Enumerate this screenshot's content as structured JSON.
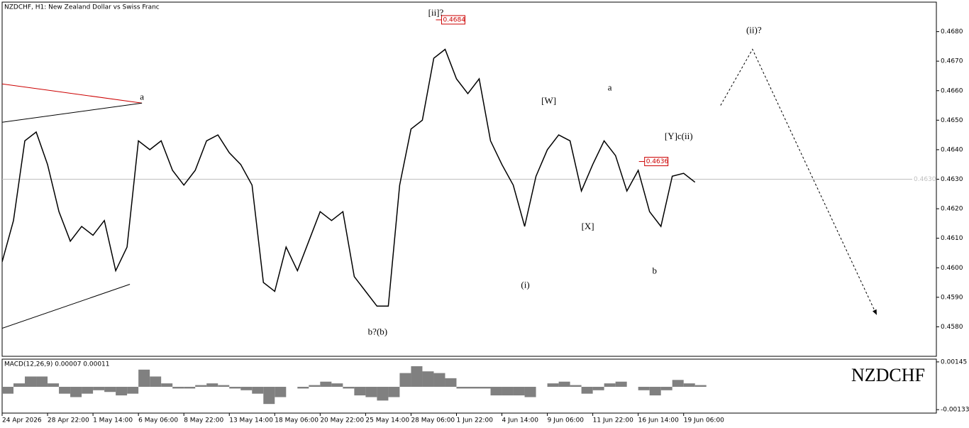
{
  "chart_data": [
    {
      "type": "line",
      "title": "NZDCHF, H1:  New Zealand Dollar vs Swiss Franc",
      "xlim": [
        0,
        329
      ],
      "ylim": [
        0.457,
        0.469
      ],
      "xticks": [
        {
          "value": 0,
          "label": "24 Apr 2026"
        },
        {
          "value": 16,
          "label": "28 Apr 22:00"
        },
        {
          "value": 32,
          "label": "1 May 14:00"
        },
        {
          "value": 48,
          "label": "6 May 06:00"
        },
        {
          "value": 64,
          "label": "8 May 22:00"
        },
        {
          "value": 80,
          "label": "13 May 14:00"
        },
        {
          "value": 96,
          "label": "18 May 06:00"
        },
        {
          "value": 112,
          "label": "20 May 22:00"
        },
        {
          "value": 128,
          "label": "25 May 14:00"
        },
        {
          "value": 144,
          "label": "28 May 06:00"
        },
        {
          "value": 160,
          "label": "1 Jun 22:00"
        },
        {
          "value": 176,
          "label": "4 Jun 14:00"
        },
        {
          "value": 192,
          "label": "9 Jun 06:00"
        },
        {
          "value": 208,
          "label": "11 Jun 22:00"
        },
        {
          "value": 224,
          "label": "16 Jun 14:00"
        },
        {
          "value": 240,
          "label": "19 Jun 06:00"
        }
      ],
      "yticks": [
        {
          "value": 0.458,
          "label": "0.4580"
        },
        {
          "value": 0.459,
          "label": "0.4590"
        },
        {
          "value": 0.46,
          "label": "0.4600"
        },
        {
          "value": 0.461,
          "label": "0.4610"
        },
        {
          "value": 0.462,
          "label": "0.4620"
        },
        {
          "value": 0.463,
          "label": "0.4630"
        },
        {
          "value": 0.464,
          "label": "0.4640"
        },
        {
          "value": 0.465,
          "label": "0.4650"
        },
        {
          "value": 0.466,
          "label": "0.4660"
        },
        {
          "value": 0.467,
          "label": "0.4670"
        },
        {
          "value": 0.468,
          "label": "0.4680"
        }
      ],
      "x": [
        0,
        4,
        8,
        12,
        16,
        20,
        24,
        28,
        32,
        36,
        40,
        44,
        48,
        52,
        56,
        60,
        64,
        68,
        72,
        76,
        80,
        84,
        88,
        92,
        96,
        100,
        104,
        108,
        112,
        116,
        120,
        124,
        128,
        132,
        136,
        140,
        144,
        148,
        152,
        156,
        160,
        164,
        168,
        172,
        176,
        180,
        184,
        188,
        192,
        196,
        200,
        204,
        208,
        212,
        216,
        220,
        224,
        228,
        232,
        236,
        240,
        244
      ],
      "series": [
        {
          "name": "NZDCHF",
          "color": "#000000",
          "values": [
            0.4602,
            0.4616,
            0.4643,
            0.4646,
            0.4635,
            0.4619,
            0.4609,
            0.4614,
            0.4611,
            0.4616,
            0.4599,
            0.4607,
            0.4643,
            0.464,
            0.4643,
            0.4633,
            0.4628,
            0.4633,
            0.4643,
            0.4645,
            0.4639,
            0.4635,
            0.4628,
            0.4595,
            0.4592,
            0.4607,
            0.4599,
            0.4609,
            0.4619,
            0.4616,
            0.4619,
            0.4597,
            0.4592,
            0.4587,
            0.4587,
            0.4628,
            0.4647,
            0.465,
            0.4671,
            0.4674,
            0.4664,
            0.4659,
            0.4664,
            0.4643,
            0.4635,
            0.4628,
            0.4614,
            0.4631,
            0.464,
            0.4645,
            0.4643,
            0.4626,
            0.4635,
            0.4643,
            0.4638,
            0.4626,
            0.4633,
            0.4619,
            0.4614,
            0.4631,
            0.4632,
            0.4629
          ]
        }
      ],
      "lines": [
        {
          "color": "#cc0000",
          "dashed": false,
          "x": [
            0,
            49.25
          ],
          "values": [
            0.46623,
            0.46558
          ]
        },
        {
          "color": "#000000",
          "dashed": false,
          "x": [
            0,
            49.25
          ],
          "values": [
            0.46493,
            0.46558
          ]
        },
        {
          "color": "#000000",
          "dashed": false,
          "x": [
            0,
            45
          ],
          "values": [
            0.45795,
            0.45944
          ]
        },
        {
          "color": "#000000",
          "dashed": true,
          "x": [
            253,
            264.25,
            308
          ],
          "values": [
            0.4655,
            0.4674,
            0.4584
          ]
        }
      ],
      "current_price": {
        "value": 0.463,
        "label": "0.4630"
      },
      "price_marks": [
        {
          "x": 154.75,
          "value": 0.4684,
          "label": "0.4684"
        },
        {
          "x": 226.25,
          "value": 0.4636,
          "label": "0.4636"
        }
      ],
      "annotations": [
        {
          "text": "a",
          "x": 49.25,
          "y": 0.46577
        },
        {
          "text": "[ii]?",
          "x": 152.75,
          "y": 0.46862
        },
        {
          "text": "(ii)?",
          "x": 264.75,
          "y": 0.46802
        },
        {
          "text": "[W]",
          "x": 192.5,
          "y": 0.46563
        },
        {
          "text": "a",
          "x": 214,
          "y": 0.46608
        },
        {
          "text": "[Y]c(ii)",
          "x": 238.25,
          "y": 0.46443
        },
        {
          "text": "[X]",
          "x": 206.25,
          "y": 0.46138
        },
        {
          "text": "(i)",
          "x": 184.25,
          "y": 0.45939
        },
        {
          "text": "b",
          "x": 229.75,
          "y": 0.45987
        },
        {
          "text": "b?(b)",
          "x": 132.25,
          "y": 0.45781
        }
      ]
    },
    {
      "type": "bar",
      "title": "MACD(12,26,9) 0.00007 0.00011",
      "watermark": "NZDCHF",
      "color": "#808080",
      "xlim": [
        0,
        329
      ],
      "ylim": [
        -0.00153,
        0.00161
      ],
      "yticks": [
        0.00145,
        -0.00133
      ],
      "x": [
        0,
        4,
        8,
        12,
        16,
        20,
        24,
        28,
        32,
        36,
        40,
        44,
        48,
        52,
        56,
        60,
        64,
        68,
        72,
        76,
        80,
        84,
        88,
        92,
        96,
        100,
        104,
        108,
        112,
        116,
        120,
        124,
        128,
        132,
        136,
        140,
        144,
        148,
        152,
        156,
        160,
        164,
        168,
        172,
        176,
        180,
        184,
        188,
        192,
        196,
        200,
        204,
        208,
        212,
        216,
        220,
        224,
        228,
        232,
        236,
        240,
        244
      ],
      "values": [
        -0.0004,
        0.0002,
        0.0006,
        0.0006,
        0.0002,
        -0.0004,
        -0.0006,
        -0.0004,
        -0.0002,
        -0.0003,
        -0.0005,
        -0.0004,
        0.001,
        0.0006,
        0.0002,
        -0.0001,
        -0.0001,
        0.0001,
        0.0002,
        0.0001,
        -0.0001,
        -0.0002,
        -0.0004,
        -0.001,
        -0.0006,
        0,
        -0.0001,
        0.0001,
        0.0003,
        0.0002,
        -0.0001,
        -0.0005,
        -0.0006,
        -0.0008,
        -0.0006,
        0.0008,
        0.0012,
        0.0009,
        0.0008,
        0.0005,
        -0.0001,
        -0.0001,
        -0.0001,
        -0.0005,
        -0.0005,
        -0.0005,
        -0.0006,
        0,
        0.0002,
        0.0003,
        0.0001,
        -0.0004,
        -0.0002,
        0.0002,
        0.0003,
        0,
        -0.0002,
        -0.0005,
        -0.0002,
        0.0004,
        0.0002,
        0.0001
      ]
    }
  ]
}
